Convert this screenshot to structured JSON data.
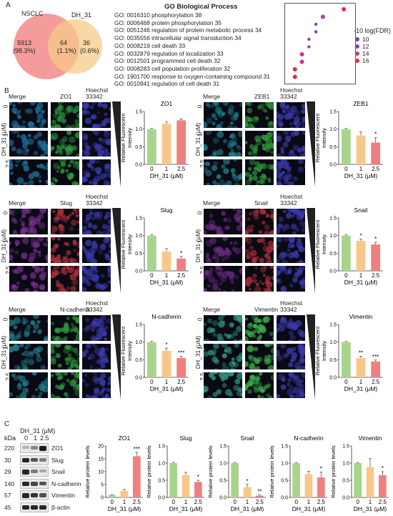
{
  "panelA": {
    "letter": "A",
    "venn": {
      "left_label": "NSCLC",
      "right_label": "DH_31",
      "left_count": "5913",
      "left_pct": "(98.3%)",
      "overlap_count": "64",
      "overlap_pct": "(1.1%)",
      "right_count": "36",
      "right_pct": "(0.6%)",
      "left_color": "#f28b8b",
      "right_color": "#f7c98a"
    },
    "go": {
      "title": "GO Biological Process",
      "terms": [
        {
          "text": "GO: 0016310  phosphorylation  38",
          "fdr": 16
        },
        {
          "text": "GO: 0006468  protein phosphorylation  35",
          "fdr": 14
        },
        {
          "text": "GO: 0051246  regulation of protein metabolic process  34",
          "fdr": 12
        },
        {
          "text": "GO: 0035556  intracellular signal transduction  34",
          "fdr": 10
        },
        {
          "text": "GO: 0008219  cell death  33",
          "fdr": 12
        },
        {
          "text": "GO: 0032879  regulation of localization  33",
          "fdr": 12
        },
        {
          "text": "GO: 0012501  programmed cell death  32",
          "fdr": 14
        },
        {
          "text": "GO: 0008283  cell population proliferation  32",
          "fdr": 14
        },
        {
          "text": "GO: 1901700  response to oxygen-containing compound 31",
          "fdr": 16
        },
        {
          "text": "GO: 0010941  regulation of cell death 31",
          "fdr": 16
        }
      ],
      "legend_title": "-10 log(FDR)",
      "legend_items": [
        {
          "label": "10",
          "color": "#5b4fc4"
        },
        {
          "label": "12",
          "color": "#8a3fb0"
        },
        {
          "label": "14",
          "color": "#c0369c"
        },
        {
          "label": "16",
          "color": "#e8284a"
        }
      ]
    }
  },
  "panelB": {
    "letter": "B",
    "col_merge": "Merge",
    "col_hoechst": "Hoechst\n33342",
    "row_axis": "DH_31 (μM)",
    "doses": [
      "0",
      "1",
      "2.5"
    ],
    "y_label": "Relative Fluorescent\nIntensity",
    "x_label": "DH_31 (μM)"
  },
  "panelC": {
    "letter": "C",
    "kda": "kDa",
    "dh_label": "DH_31 (μM)",
    "doses": [
      "0",
      "1",
      "2.5"
    ],
    "blots": [
      {
        "kda": "220",
        "name": "ZO1"
      },
      {
        "kda": "30",
        "name": "Slug"
      },
      {
        "kda": "29",
        "name": "Snail"
      },
      {
        "kda": "140",
        "name": "N-cadherin"
      },
      {
        "kda": "57",
        "name": "Vimentin"
      },
      {
        "kda": "45",
        "name": "β-actin"
      }
    ],
    "y_label": "Relative protein levels",
    "x_label": "DH_31 (μM)"
  },
  "colors": {
    "dose0": "#a8d58c",
    "dose1": "#f8c88a",
    "dose2": "#f08080"
  },
  "chart_data": [
    {
      "type": "bar",
      "id": "B-ZO1",
      "title": "ZO1",
      "categories": [
        "0",
        "1",
        "2.5"
      ],
      "values": [
        1.0,
        1.15,
        1.25
      ],
      "errors": [
        0.02,
        0.05,
        0.04
      ],
      "sig": [
        "",
        "",
        ""
      ],
      "ylim": [
        0,
        1.5
      ],
      "yticks": [
        "0.0",
        "0.5",
        "1.0",
        "1.5"
      ],
      "ylabel": "Relative Fluorescent Intensity",
      "xlabel": "DH_31 (μM)"
    },
    {
      "type": "bar",
      "id": "B-ZEB1",
      "title": "ZEB1",
      "categories": [
        "0",
        "1",
        "2.5"
      ],
      "values": [
        1.0,
        0.82,
        0.62
      ],
      "errors": [
        0.02,
        0.1,
        0.14
      ],
      "sig": [
        "",
        "",
        "*"
      ],
      "ylim": [
        0,
        1.5
      ],
      "yticks": [
        "0.0",
        "0.5",
        "1.0",
        "1.5"
      ],
      "ylabel": "Relative Fluorescent Intensity",
      "xlabel": "DH_31 (μM)"
    },
    {
      "type": "bar",
      "id": "B-Slug",
      "title": "Slug",
      "categories": [
        "0",
        "1",
        "2.5"
      ],
      "values": [
        1.0,
        0.55,
        0.35
      ],
      "errors": [
        0.02,
        0.08,
        0.06
      ],
      "sig": [
        "",
        "",
        "*"
      ],
      "ylim": [
        0,
        1.5
      ],
      "yticks": [
        "0.0",
        "0.5",
        "1.0",
        "1.5"
      ],
      "ylabel": "Relative Fluorescent Intensity",
      "xlabel": "DH_31 (μM)"
    },
    {
      "type": "bar",
      "id": "B-Snail",
      "title": "Snail",
      "categories": [
        "0",
        "1",
        "2.5"
      ],
      "values": [
        1.0,
        0.85,
        0.75
      ],
      "errors": [
        0.02,
        0.05,
        0.06
      ],
      "sig": [
        "",
        "*",
        "*"
      ],
      "ylim": [
        0,
        1.5
      ],
      "yticks": [
        "0.0",
        "0.5",
        "1.0",
        "1.5"
      ],
      "ylabel": "Relative Fluorescent Intensity",
      "xlabel": "DH_31 (μM)"
    },
    {
      "type": "bar",
      "id": "B-Ncad",
      "title": "N-cadherin",
      "categories": [
        "0",
        "1",
        "2.5"
      ],
      "values": [
        1.0,
        0.75,
        0.55
      ],
      "errors": [
        0.02,
        0.08,
        0.05
      ],
      "sig": [
        "",
        "*",
        "***"
      ],
      "ylim": [
        0,
        1.5
      ],
      "yticks": [
        "0.0",
        "0.5",
        "1.0",
        "1.5"
      ],
      "ylabel": "Relative Fluorescent Intensity",
      "xlabel": "DH_31 (μM)"
    },
    {
      "type": "bar",
      "id": "B-Vim",
      "title": "Vimentin",
      "categories": [
        "0",
        "1",
        "2.5"
      ],
      "values": [
        1.0,
        0.55,
        0.45
      ],
      "errors": [
        0.02,
        0.05,
        0.04
      ],
      "sig": [
        "",
        "**",
        "***"
      ],
      "ylim": [
        0,
        1.5
      ],
      "yticks": [
        "0.0",
        "0.5",
        "1.0",
        "1.5"
      ],
      "ylabel": "Relative Fluorescent Intensity",
      "xlabel": "DH_31 (μM)"
    },
    {
      "type": "bar",
      "id": "C-ZO1",
      "title": "ZO1",
      "categories": [
        "0",
        "1",
        "2.5"
      ],
      "values": [
        1.0,
        2.5,
        16.0
      ],
      "errors": [
        0.1,
        0.6,
        1.5
      ],
      "sig": [
        "",
        "",
        "***"
      ],
      "ylim": [
        0,
        20
      ],
      "yticks": [
        "0",
        "5",
        "10",
        "15",
        "20"
      ],
      "ylabel": "Relative protein levels",
      "xlabel": "DH_31 (μM)"
    },
    {
      "type": "bar",
      "id": "C-Slug",
      "title": "Slug",
      "categories": [
        "0",
        "1",
        "2.5"
      ],
      "values": [
        1.0,
        0.65,
        0.45
      ],
      "errors": [
        0.02,
        0.08,
        0.05
      ],
      "sig": [
        "",
        "",
        "*"
      ],
      "ylim": [
        0,
        1.5
      ],
      "yticks": [
        "0.0",
        "0.5",
        "1.0",
        "1.5"
      ],
      "ylabel": "Relative protein levels",
      "xlabel": "DH_31 (μM)"
    },
    {
      "type": "bar",
      "id": "C-Snail",
      "title": "Snail",
      "categories": [
        "0",
        "1",
        "2.5"
      ],
      "values": [
        1.0,
        0.3,
        0.05
      ],
      "errors": [
        0.02,
        0.08,
        0.02
      ],
      "sig": [
        "",
        "*",
        "**"
      ],
      "ylim": [
        0,
        1.5
      ],
      "yticks": [
        "0.0",
        "0.5",
        "1.0",
        "1.5"
      ],
      "ylabel": "Relative protein levels",
      "xlabel": "DH_31 (μM)"
    },
    {
      "type": "bar",
      "id": "C-Ncad",
      "title": "N-cadherin",
      "categories": [
        "0",
        "1",
        "2.5"
      ],
      "values": [
        1.0,
        0.68,
        0.58
      ],
      "errors": [
        0.02,
        0.08,
        0.16
      ],
      "sig": [
        "",
        "",
        "*"
      ],
      "ylim": [
        0,
        1.5
      ],
      "yticks": [
        "0.0",
        "0.5",
        "1.0",
        "1.5"
      ],
      "ylabel": "Relative protein levels",
      "xlabel": "DH_31 (μM)"
    },
    {
      "type": "bar",
      "id": "C-Vim",
      "title": "Vimentin",
      "categories": [
        "0",
        "1",
        "2.5"
      ],
      "values": [
        1.0,
        0.88,
        0.65
      ],
      "errors": [
        0.02,
        0.25,
        0.1
      ],
      "sig": [
        "",
        "",
        "*"
      ],
      "ylim": [
        0,
        1.5
      ],
      "yticks": [
        "0.0",
        "0.5",
        "1.0",
        "1.5"
      ],
      "ylabel": "Relative protein levels",
      "xlabel": "DH_31 (μM)"
    }
  ],
  "micro_panels": [
    {
      "title": "ZO1",
      "channel_color": "#2d9a3a",
      "merge_color": "#1e6e9a"
    },
    {
      "title": "ZEB1",
      "channel_color": "#2d9a3a",
      "merge_color": "#1e7e8a"
    },
    {
      "title": "Slug",
      "channel_color": "#b0303a",
      "merge_color": "#7a3090"
    },
    {
      "title": "Snail",
      "channel_color": "#b0303a",
      "merge_color": "#6a2a80"
    },
    {
      "title": "N-cadherin",
      "channel_color": "#2d9a3a",
      "merge_color": "#1e7e8a"
    },
    {
      "title": "Vimentin",
      "channel_color": "#3ab04a",
      "merge_color": "#2e9e80"
    }
  ]
}
